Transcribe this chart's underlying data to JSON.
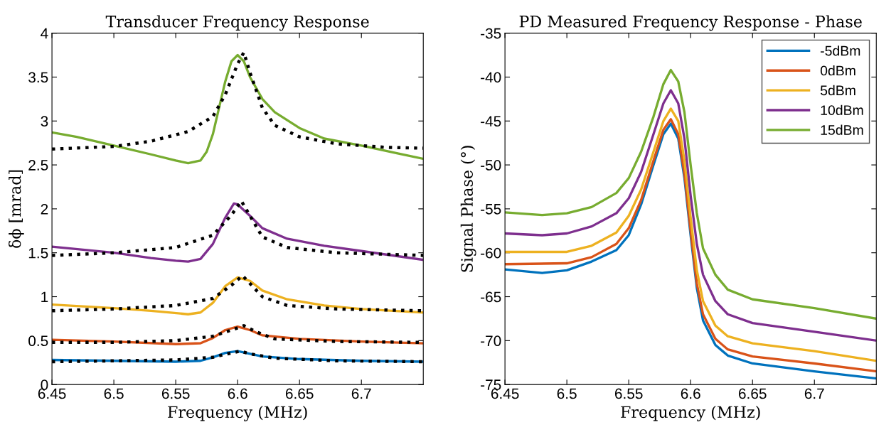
{
  "chart_data": [
    {
      "type": "line",
      "title": "Transducer Frequency Response",
      "xlabel": "Frequency (MHz)",
      "ylabel": "δϕ [mrad]",
      "xlim": [
        6.45,
        6.75
      ],
      "xticks": [
        6.45,
        6.5,
        6.55,
        6.6,
        6.65,
        6.7
      ],
      "ylim": [
        0,
        4
      ],
      "yticks": [
        0,
        0.5,
        1,
        1.5,
        2,
        2.5,
        3,
        3.5,
        4
      ],
      "grid": false,
      "legend": false,
      "series": [
        {
          "color": "#77ac30",
          "x": [
            6.45,
            6.47,
            6.5,
            6.53,
            6.55,
            6.56,
            6.57,
            6.575,
            6.58,
            6.585,
            6.59,
            6.595,
            6.6,
            6.605,
            6.61,
            6.62,
            6.63,
            6.65,
            6.67,
            6.7,
            6.73,
            6.75
          ],
          "values": [
            2.87,
            2.82,
            2.72,
            2.62,
            2.55,
            2.52,
            2.55,
            2.65,
            2.85,
            3.15,
            3.45,
            3.68,
            3.75,
            3.68,
            3.5,
            3.25,
            3.1,
            2.92,
            2.8,
            2.72,
            2.63,
            2.57
          ]
        },
        {
          "color": "#000000",
          "line_style": "dotted",
          "x": [
            6.45,
            6.5,
            6.53,
            6.56,
            6.58,
            6.59,
            6.6,
            6.605,
            6.61,
            6.62,
            6.63,
            6.65,
            6.68,
            6.72,
            6.75
          ],
          "values": [
            2.68,
            2.71,
            2.77,
            2.88,
            3.05,
            3.3,
            3.65,
            3.78,
            3.55,
            3.15,
            2.95,
            2.82,
            2.74,
            2.7,
            2.69
          ]
        },
        {
          "color": "#7e2f8e",
          "x": [
            6.45,
            6.5,
            6.53,
            6.55,
            6.56,
            6.57,
            6.58,
            6.59,
            6.597,
            6.6,
            6.61,
            6.62,
            6.64,
            6.67,
            6.7,
            6.75
          ],
          "values": [
            1.57,
            1.5,
            1.44,
            1.41,
            1.4,
            1.43,
            1.6,
            1.9,
            2.06,
            2.05,
            1.92,
            1.78,
            1.66,
            1.58,
            1.52,
            1.42
          ]
        },
        {
          "color": "#000000",
          "line_style": "dotted",
          "x": [
            6.45,
            6.5,
            6.55,
            6.58,
            6.595,
            6.603,
            6.61,
            6.62,
            6.64,
            6.68,
            6.75
          ],
          "values": [
            1.47,
            1.5,
            1.56,
            1.7,
            1.93,
            2.09,
            1.92,
            1.68,
            1.56,
            1.5,
            1.47
          ]
        },
        {
          "color": "#edb120",
          "x": [
            6.45,
            6.5,
            6.53,
            6.56,
            6.57,
            6.58,
            6.59,
            6.6,
            6.61,
            6.62,
            6.64,
            6.67,
            6.7,
            6.75
          ],
          "values": [
            0.91,
            0.87,
            0.84,
            0.8,
            0.82,
            0.93,
            1.12,
            1.22,
            1.18,
            1.07,
            0.97,
            0.9,
            0.86,
            0.82
          ]
        },
        {
          "color": "#000000",
          "line_style": "dotted",
          "x": [
            6.45,
            6.5,
            6.55,
            6.58,
            6.595,
            6.604,
            6.61,
            6.62,
            6.64,
            6.68,
            6.75
          ],
          "values": [
            0.84,
            0.86,
            0.9,
            0.98,
            1.13,
            1.24,
            1.15,
            1.0,
            0.9,
            0.86,
            0.84
          ]
        },
        {
          "color": "#d95319",
          "x": [
            6.45,
            6.5,
            6.55,
            6.57,
            6.58,
            6.59,
            6.6,
            6.61,
            6.62,
            6.65,
            6.7,
            6.75
          ],
          "values": [
            0.51,
            0.49,
            0.46,
            0.47,
            0.53,
            0.62,
            0.66,
            0.62,
            0.56,
            0.52,
            0.49,
            0.47
          ]
        },
        {
          "color": "#000000",
          "line_style": "dotted",
          "x": [
            6.45,
            6.5,
            6.55,
            6.58,
            6.595,
            6.605,
            6.615,
            6.63,
            6.68,
            6.75
          ],
          "values": [
            0.48,
            0.48,
            0.5,
            0.55,
            0.62,
            0.67,
            0.6,
            0.52,
            0.49,
            0.48
          ]
        },
        {
          "color": "#0072bd",
          "x": [
            6.45,
            6.5,
            6.55,
            6.57,
            6.58,
            6.59,
            6.6,
            6.61,
            6.62,
            6.65,
            6.7,
            6.75
          ],
          "values": [
            0.28,
            0.27,
            0.26,
            0.27,
            0.31,
            0.36,
            0.38,
            0.35,
            0.32,
            0.29,
            0.27,
            0.26
          ]
        },
        {
          "color": "#000000",
          "line_style": "dotted",
          "x": [
            6.45,
            6.5,
            6.55,
            6.58,
            6.595,
            6.602,
            6.61,
            6.63,
            6.68,
            6.75
          ],
          "values": [
            0.26,
            0.27,
            0.28,
            0.31,
            0.36,
            0.38,
            0.35,
            0.3,
            0.27,
            0.26
          ]
        }
      ]
    },
    {
      "type": "line",
      "title": "PD Measured Frequency Response - Phase",
      "xlabel": "Frequency (MHz)",
      "ylabel": "Signal Phase (°)",
      "xlim": [
        6.45,
        6.75
      ],
      "xticks": [
        6.45,
        6.5,
        6.55,
        6.6,
        6.65,
        6.7
      ],
      "ylim": [
        -75,
        -35
      ],
      "yticks": [
        -75,
        -70,
        -65,
        -60,
        -55,
        -50,
        -45,
        -40,
        -35
      ],
      "grid": false,
      "legend": "top right",
      "series": [
        {
          "name": "-5dBm",
          "color": "#0072bd",
          "x": [
            6.45,
            6.48,
            6.5,
            6.52,
            6.54,
            6.55,
            6.56,
            6.57,
            6.578,
            6.584,
            6.59,
            6.595,
            6.6,
            6.605,
            6.61,
            6.62,
            6.63,
            6.65,
            6.7,
            6.75
          ],
          "values": [
            -61.9,
            -62.3,
            -62,
            -61,
            -59.7,
            -58,
            -54.5,
            -50,
            -46.5,
            -45.3,
            -47,
            -51.5,
            -58,
            -64,
            -67.7,
            -70.5,
            -71.7,
            -72.6,
            -73.5,
            -74.3
          ]
        },
        {
          "name": "0dBm",
          "color": "#d95319",
          "x": [
            6.45,
            6.5,
            6.52,
            6.54,
            6.55,
            6.56,
            6.57,
            6.578,
            6.584,
            6.59,
            6.595,
            6.6,
            6.605,
            6.61,
            6.62,
            6.63,
            6.65,
            6.7,
            6.75
          ],
          "values": [
            -61.3,
            -61.2,
            -60.5,
            -59,
            -57.2,
            -54,
            -49.5,
            -46,
            -44.8,
            -46.5,
            -51,
            -57.5,
            -63.5,
            -67,
            -69.8,
            -71,
            -71.8,
            -72.6,
            -73.5
          ]
        },
        {
          "name": "5dBm",
          "color": "#edb120",
          "x": [
            6.45,
            6.5,
            6.52,
            6.54,
            6.55,
            6.56,
            6.57,
            6.578,
            6.584,
            6.59,
            6.595,
            6.6,
            6.605,
            6.61,
            6.62,
            6.63,
            6.65,
            6.7,
            6.75
          ],
          "values": [
            -59.9,
            -59.9,
            -59.2,
            -57.7,
            -55.8,
            -52.8,
            -48.5,
            -45,
            -43.6,
            -45,
            -49.5,
            -56,
            -62,
            -65.5,
            -68.3,
            -69.5,
            -70.3,
            -71.2,
            -72.3
          ]
        },
        {
          "name": "10dBm",
          "color": "#7e2f8e",
          "x": [
            6.45,
            6.48,
            6.5,
            6.52,
            6.54,
            6.55,
            6.56,
            6.57,
            6.578,
            6.584,
            6.59,
            6.595,
            6.6,
            6.605,
            6.61,
            6.62,
            6.63,
            6.65,
            6.7,
            6.75
          ],
          "values": [
            -57.8,
            -58,
            -57.8,
            -57,
            -55.5,
            -53.8,
            -50.8,
            -46.5,
            -43,
            -41.5,
            -43,
            -47,
            -53.5,
            -59,
            -62.5,
            -65.5,
            -67,
            -68,
            -69,
            -70
          ]
        },
        {
          "name": "15dBm",
          "color": "#77ac30",
          "x": [
            6.45,
            6.48,
            6.5,
            6.52,
            6.54,
            6.55,
            6.56,
            6.57,
            6.578,
            6.584,
            6.59,
            6.595,
            6.6,
            6.605,
            6.61,
            6.62,
            6.63,
            6.65,
            6.7,
            6.75
          ],
          "values": [
            -55.4,
            -55.7,
            -55.5,
            -54.8,
            -53.2,
            -51.5,
            -48.5,
            -44.5,
            -40.8,
            -39.2,
            -40.5,
            -44,
            -50,
            -55.5,
            -59.5,
            -62.5,
            -64.2,
            -65.3,
            -66.3,
            -67.5
          ]
        }
      ]
    }
  ]
}
